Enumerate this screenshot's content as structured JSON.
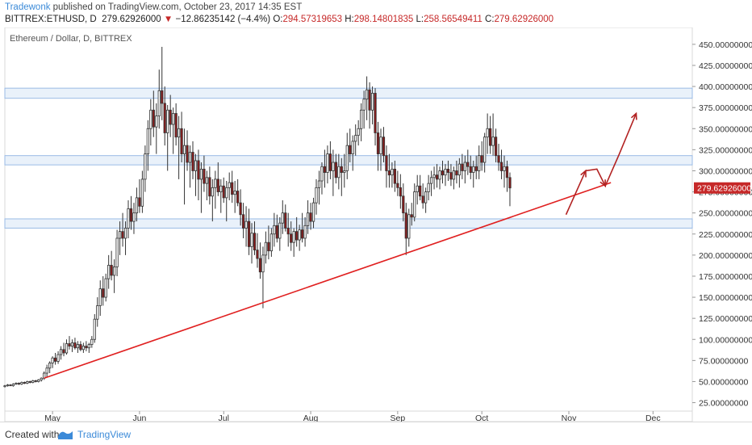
{
  "header": {
    "author": "Tradewonk",
    "published": " published on TradingView.com, October 23, 2017 14:35 EST",
    "symbol": "BITTREX:ETHUSD, D",
    "last": "279.62926000",
    "change": "−12.86235142 (−4.4%)",
    "o_label": "O:",
    "o_value": "294.57319653",
    "h_label": "H:",
    "h_value": "298.14801835",
    "l_label": "L:",
    "l_value": "258.56549411",
    "c_label": "C:",
    "c_value": "279.62926000"
  },
  "footer": {
    "created": "Created with",
    "brand": "TradingView"
  },
  "colors": {
    "up": "#ffffff",
    "down": "#8b1a1a",
    "wick": "#333333",
    "trendline": "#e02020",
    "zone": "#cfe0f5",
    "annotation": "#b22222",
    "price_tag": "#c62828"
  },
  "chart_data": {
    "type": "candlestick",
    "title": "Ethereum / Dollar, D, BITTREX",
    "ylim": [
      15,
      470
    ],
    "y_ticks": [
      25,
      50,
      75,
      100,
      125,
      150,
      175,
      200,
      225,
      250,
      275,
      300,
      325,
      350,
      375,
      400,
      425,
      450
    ],
    "y_tick_labels": [
      "25.00000000",
      "50.00000000",
      "75.00000000",
      "100.00000000",
      "125.00000000",
      "150.00000000",
      "175.00000000",
      "200.00000000",
      "225.00000000",
      "250.00000000",
      "275.00000000",
      "300.00000000",
      "325.00000000",
      "350.00000000",
      "375.00000000",
      "400.00000000",
      "425.00000000",
      "450.00000000"
    ],
    "x_labels": [
      {
        "label": "May",
        "day": 0
      },
      {
        "label": "Jun",
        "day": 31
      },
      {
        "label": "Jul",
        "day": 61
      },
      {
        "label": "Aug",
        "day": 92
      },
      {
        "label": "Sep",
        "day": 123
      },
      {
        "label": "Oct",
        "day": 153
      },
      {
        "label": "Nov",
        "day": 184
      },
      {
        "label": "Dec",
        "day": 214
      }
    ],
    "xlim": [
      -17,
      228
    ],
    "last_price": 279.62926,
    "last_price_label": "279.62926000",
    "candles": [
      [
        -17,
        44,
        46,
        43,
        45
      ],
      [
        -16,
        45,
        47,
        44,
        46
      ],
      [
        -15,
        46,
        47,
        45,
        45
      ],
      [
        -14,
        45,
        48,
        44,
        47
      ],
      [
        -13,
        47,
        49,
        46,
        48
      ],
      [
        -12,
        48,
        49,
        46,
        47
      ],
      [
        -11,
        47,
        50,
        46,
        49
      ],
      [
        -10,
        49,
        50,
        47,
        48
      ],
      [
        -9,
        48,
        51,
        47,
        50
      ],
      [
        -8,
        50,
        51,
        48,
        49
      ],
      [
        -7,
        49,
        52,
        48,
        51
      ],
      [
        -6,
        51,
        52,
        49,
        50
      ],
      [
        -5,
        50,
        53,
        49,
        52
      ],
      [
        -4,
        52,
        55,
        50,
        54
      ],
      [
        -3,
        54,
        62,
        52,
        60
      ],
      [
        -2,
        60,
        70,
        55,
        66
      ],
      [
        -1,
        66,
        74,
        60,
        72
      ],
      [
        0,
        72,
        80,
        66,
        78
      ],
      [
        1,
        78,
        84,
        70,
        74
      ],
      [
        2,
        74,
        86,
        71,
        82
      ],
      [
        3,
        82,
        92,
        76,
        88
      ],
      [
        4,
        88,
        96,
        80,
        84
      ],
      [
        5,
        84,
        100,
        82,
        95
      ],
      [
        6,
        95,
        104,
        88,
        92
      ],
      [
        7,
        92,
        100,
        85,
        96
      ],
      [
        8,
        96,
        102,
        88,
        90
      ],
      [
        9,
        90,
        98,
        84,
        94
      ],
      [
        10,
        94,
        98,
        86,
        88
      ],
      [
        11,
        88,
        96,
        84,
        92
      ],
      [
        12,
        92,
        98,
        86,
        90
      ],
      [
        13,
        90,
        96,
        84,
        94
      ],
      [
        14,
        94,
        104,
        90,
        100
      ],
      [
        15,
        100,
        130,
        96,
        124
      ],
      [
        16,
        124,
        150,
        115,
        140
      ],
      [
        17,
        140,
        170,
        128,
        160
      ],
      [
        18,
        160,
        175,
        140,
        150
      ],
      [
        19,
        150,
        178,
        145,
        172
      ],
      [
        20,
        172,
        200,
        160,
        188
      ],
      [
        21,
        188,
        205,
        170,
        176
      ],
      [
        22,
        176,
        195,
        155,
        186
      ],
      [
        23,
        186,
        230,
        175,
        220
      ],
      [
        24,
        220,
        240,
        200,
        228
      ],
      [
        25,
        228,
        250,
        210,
        220
      ],
      [
        26,
        220,
        240,
        200,
        232
      ],
      [
        27,
        232,
        265,
        220,
        255
      ],
      [
        28,
        255,
        270,
        230,
        240
      ],
      [
        29,
        240,
        262,
        225,
        250
      ],
      [
        30,
        250,
        280,
        240,
        268
      ],
      [
        31,
        268,
        290,
        250,
        258
      ],
      [
        32,
        258,
        300,
        250,
        290
      ],
      [
        33,
        290,
        330,
        275,
        320
      ],
      [
        34,
        320,
        360,
        300,
        350
      ],
      [
        35,
        350,
        385,
        330,
        372
      ],
      [
        36,
        372,
        395,
        340,
        352
      ],
      [
        37,
        352,
        380,
        320,
        365
      ],
      [
        38,
        365,
        420,
        350,
        395
      ],
      [
        39,
        395,
        447,
        360,
        380
      ],
      [
        40,
        380,
        400,
        330,
        345
      ],
      [
        41,
        345,
        378,
        300,
        372
      ],
      [
        42,
        372,
        390,
        340,
        355
      ],
      [
        43,
        355,
        375,
        320,
        368
      ],
      [
        44,
        368,
        380,
        330,
        340
      ],
      [
        45,
        340,
        365,
        290,
        350
      ],
      [
        46,
        350,
        370,
        310,
        320
      ],
      [
        47,
        320,
        350,
        260,
        330
      ],
      [
        48,
        330,
        348,
        300,
        310
      ],
      [
        49,
        310,
        330,
        280,
        322
      ],
      [
        50,
        322,
        335,
        290,
        300
      ],
      [
        51,
        300,
        320,
        270,
        312
      ],
      [
        52,
        312,
        325,
        265,
        290
      ],
      [
        53,
        290,
        310,
        250,
        302
      ],
      [
        54,
        302,
        318,
        275,
        285
      ],
      [
        55,
        285,
        300,
        265,
        292
      ],
      [
        56,
        292,
        305,
        260,
        270
      ],
      [
        57,
        270,
        290,
        240,
        280
      ],
      [
        58,
        280,
        300,
        255,
        290
      ],
      [
        59,
        290,
        310,
        270,
        275
      ],
      [
        60,
        275,
        290,
        250,
        282
      ],
      [
        61,
        282,
        292,
        262,
        268
      ],
      [
        62,
        268,
        288,
        240,
        280
      ],
      [
        63,
        280,
        298,
        265,
        286
      ],
      [
        64,
        286,
        300,
        262,
        272
      ],
      [
        65,
        272,
        288,
        250,
        276
      ],
      [
        66,
        276,
        290,
        258,
        262
      ],
      [
        67,
        262,
        278,
        235,
        248
      ],
      [
        68,
        248,
        262,
        220,
        232
      ],
      [
        69,
        232,
        258,
        210,
        240
      ],
      [
        70,
        240,
        255,
        200,
        210
      ],
      [
        71,
        210,
        238,
        190,
        226
      ],
      [
        72,
        226,
        240,
        200,
        206
      ],
      [
        73,
        206,
        226,
        185,
        196
      ],
      [
        74,
        196,
        215,
        172,
        180
      ],
      [
        75,
        180,
        210,
        137,
        200
      ],
      [
        76,
        200,
        228,
        190,
        215
      ],
      [
        77,
        215,
        235,
        195,
        205
      ],
      [
        78,
        205,
        232,
        198,
        225
      ],
      [
        79,
        225,
        250,
        210,
        235
      ],
      [
        80,
        235,
        248,
        215,
        220
      ],
      [
        81,
        220,
        245,
        205,
        238
      ],
      [
        82,
        238,
        265,
        225,
        250
      ],
      [
        83,
        250,
        260,
        228,
        232
      ],
      [
        84,
        232,
        250,
        210,
        225
      ],
      [
        85,
        225,
        240,
        205,
        215
      ],
      [
        86,
        215,
        232,
        198,
        228
      ],
      [
        87,
        228,
        245,
        210,
        218
      ],
      [
        88,
        218,
        236,
        205,
        230
      ],
      [
        89,
        230,
        250,
        215,
        220
      ],
      [
        90,
        220,
        245,
        210,
        235
      ],
      [
        91,
        235,
        265,
        225,
        250
      ],
      [
        92,
        250,
        262,
        230,
        240
      ],
      [
        93,
        240,
        268,
        232,
        262
      ],
      [
        94,
        262,
        290,
        248,
        280
      ],
      [
        95,
        280,
        300,
        260,
        288
      ],
      [
        96,
        288,
        310,
        272,
        305
      ],
      [
        97,
        305,
        325,
        280,
        298
      ],
      [
        98,
        298,
        330,
        285,
        320
      ],
      [
        99,
        320,
        335,
        290,
        300
      ],
      [
        100,
        300,
        325,
        270,
        310
      ],
      [
        101,
        310,
        320,
        285,
        292
      ],
      [
        102,
        292,
        320,
        278,
        305
      ],
      [
        103,
        305,
        315,
        270,
        298
      ],
      [
        104,
        298,
        320,
        280,
        300
      ],
      [
        105,
        300,
        345,
        290,
        330
      ],
      [
        106,
        330,
        350,
        310,
        320
      ],
      [
        107,
        320,
        342,
        300,
        335
      ],
      [
        108,
        335,
        355,
        318,
        342
      ],
      [
        109,
        342,
        360,
        330,
        350
      ],
      [
        110,
        350,
        380,
        335,
        372
      ],
      [
        111,
        372,
        395,
        350,
        385
      ],
      [
        112,
        385,
        412,
        360,
        396
      ],
      [
        113,
        396,
        405,
        350,
        372
      ],
      [
        114,
        372,
        400,
        355,
        392
      ],
      [
        115,
        392,
        398,
        330,
        345
      ],
      [
        116,
        345,
        358,
        300,
        320
      ],
      [
        117,
        320,
        350,
        300,
        340
      ],
      [
        118,
        340,
        352,
        310,
        318
      ],
      [
        119,
        318,
        330,
        280,
        300
      ],
      [
        120,
        300,
        320,
        280,
        295
      ],
      [
        121,
        295,
        310,
        280,
        302
      ],
      [
        122,
        302,
        312,
        275,
        285
      ],
      [
        123,
        285,
        300,
        270,
        280
      ],
      [
        124,
        280,
        296,
        255,
        270
      ],
      [
        125,
        270,
        285,
        240,
        250
      ],
      [
        126,
        250,
        262,
        200,
        220
      ],
      [
        127,
        220,
        255,
        210,
        248
      ],
      [
        128,
        248,
        262,
        235,
        245
      ],
      [
        129,
        245,
        285,
        240,
        275
      ],
      [
        130,
        275,
        295,
        260,
        282
      ],
      [
        131,
        282,
        295,
        265,
        270
      ],
      [
        132,
        270,
        285,
        255,
        262
      ],
      [
        133,
        262,
        280,
        250,
        275
      ],
      [
        134,
        275,
        295,
        265,
        285
      ],
      [
        135,
        285,
        300,
        270,
        292
      ],
      [
        136,
        292,
        305,
        278,
        295
      ],
      [
        137,
        295,
        308,
        280,
        290
      ],
      [
        138,
        290,
        305,
        278,
        300
      ],
      [
        139,
        300,
        312,
        285,
        295
      ],
      [
        140,
        295,
        308,
        282,
        302
      ],
      [
        141,
        302,
        312,
        288,
        298
      ],
      [
        142,
        298,
        308,
        282,
        290
      ],
      [
        143,
        290,
        305,
        278,
        300
      ],
      [
        144,
        300,
        312,
        285,
        295
      ],
      [
        145,
        295,
        315,
        280,
        308
      ],
      [
        146,
        308,
        320,
        290,
        300
      ],
      [
        147,
        300,
        318,
        285,
        310
      ],
      [
        148,
        310,
        325,
        295,
        305
      ],
      [
        149,
        305,
        318,
        290,
        298
      ],
      [
        150,
        298,
        312,
        280,
        305
      ],
      [
        151,
        305,
        318,
        290,
        300
      ],
      [
        152,
        300,
        330,
        290,
        318
      ],
      [
        153,
        318,
        335,
        300,
        310
      ],
      [
        154,
        310,
        345,
        298,
        340
      ],
      [
        155,
        340,
        368,
        320,
        350
      ],
      [
        156,
        350,
        365,
        320,
        330
      ],
      [
        157,
        330,
        368,
        318,
        340
      ],
      [
        158,
        340,
        350,
        310,
        318
      ],
      [
        159,
        318,
        332,
        300,
        310
      ],
      [
        160,
        310,
        325,
        290,
        300
      ],
      [
        161,
        300,
        318,
        280,
        305
      ],
      [
        162,
        305,
        312,
        275,
        292
      ],
      [
        163,
        292,
        298,
        258,
        279.63
      ]
    ],
    "support_zones": [
      [
        386,
        398
      ],
      [
        307,
        318
      ],
      [
        232,
        243
      ]
    ],
    "trendline": {
      "from": [
        -3,
        54
      ],
      "to": [
        199,
        286
      ]
    },
    "annotation_path": [
      [
        183,
        248
      ],
      [
        190,
        300
      ],
      [
        194,
        302
      ],
      [
        197,
        282
      ],
      [
        202,
        320
      ],
      [
        208,
        368
      ]
    ]
  }
}
